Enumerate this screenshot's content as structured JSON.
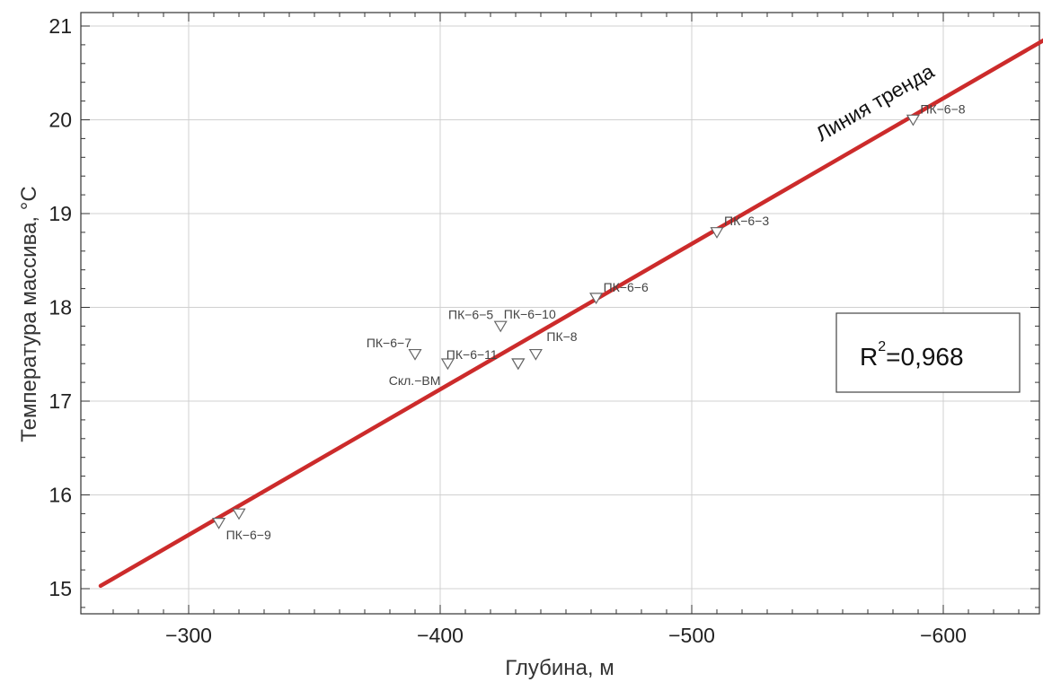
{
  "chart_data": {
    "type": "scatter",
    "xlabel": "Глубина, м",
    "ylabel": "Температура массива, °С",
    "xlim": [
      -265,
      -640
    ],
    "ylim": [
      14.75,
      21.1
    ],
    "x_reversed": true,
    "grid": true,
    "x_ticks": [
      -300,
      -400,
      -500,
      -600
    ],
    "y_ticks": [
      15,
      16,
      17,
      18,
      19,
      20,
      21
    ],
    "points": [
      {
        "label": "ПК-6-9",
        "x": -312,
        "y": 15.7
      },
      {
        "label": "",
        "x": -320,
        "y": 15.8
      },
      {
        "label": "ПК-6-7",
        "x": -390,
        "y": 17.5
      },
      {
        "label": "Скл.-ВМ",
        "x": -403,
        "y": 17.4
      },
      {
        "label": "ПК-6-5",
        "x": -424,
        "y": 17.8
      },
      {
        "label": "ПК-6-10",
        "x": -431,
        "y": 17.4
      },
      {
        "label": "ПК-6-11",
        "x": -431,
        "y": 17.4
      },
      {
        "label": "ПК-8",
        "x": -438,
        "y": 17.5
      },
      {
        "label": "ПК-6-6",
        "x": -462,
        "y": 18.1
      },
      {
        "label": "ПК-6-3",
        "x": -510,
        "y": 18.8
      },
      {
        "label": "ПК-6-8",
        "x": -588,
        "y": 20.0
      }
    ],
    "trend": {
      "label": "Линия тренда",
      "x": [
        -265,
        -640
      ],
      "y": [
        15.03,
        20.85
      ],
      "color": "#cc2b2b"
    },
    "r2": {
      "prefix": "R",
      "sup": "2",
      "value": "=0,968"
    }
  }
}
